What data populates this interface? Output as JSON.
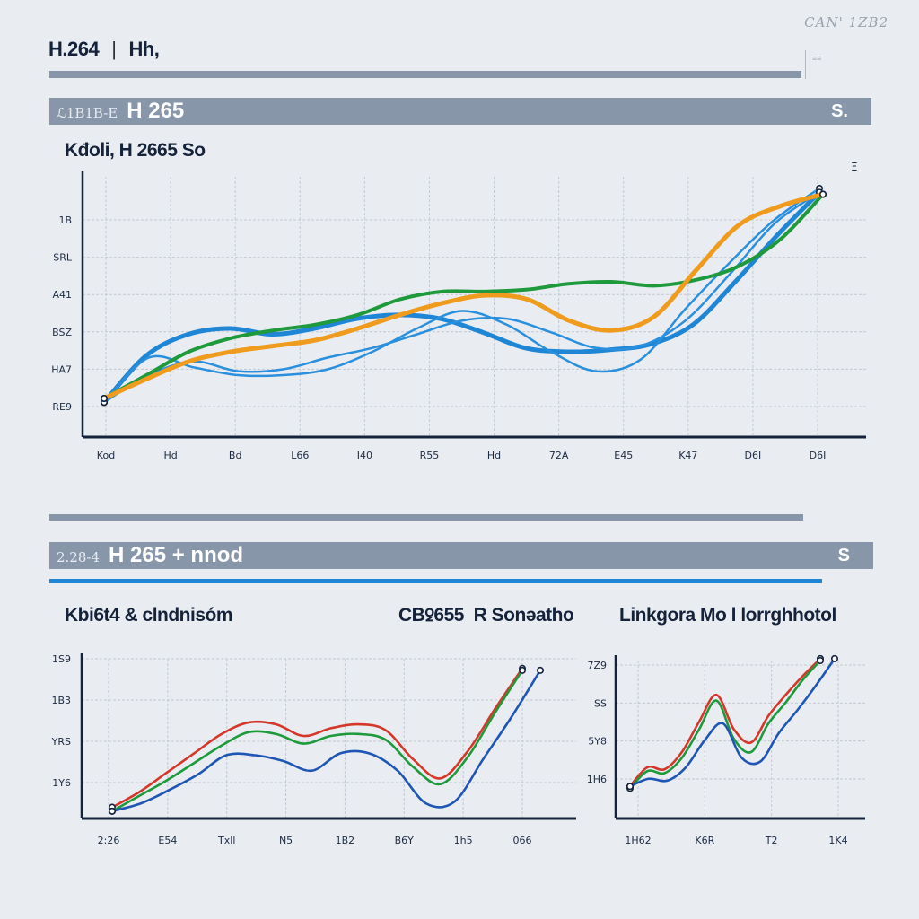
{
  "header": {
    "title_left": "H.264",
    "separator": "|",
    "title_right": "Hh,",
    "corner_text": "CAN' 1ZB2",
    "mini_box_text": "≡≡"
  },
  "section1": {
    "prefix": "ℒ1B1B-E",
    "title": "H 265",
    "suffix": "S."
  },
  "section2": {
    "prefix": "2.28-4",
    "title": "H 265 + nnod",
    "suffix": "S"
  },
  "chart_data": [
    {
      "id": "main",
      "type": "line",
      "title": "Kđoli, H 2665 So",
      "xlabel": "",
      "ylabel": "",
      "x_tick_labels": [
        "Kod",
        "Hd",
        "Bd",
        "L66",
        "I40",
        "R55",
        "Hd",
        "72A",
        "E45",
        "K47",
        "D6I",
        "D6I"
      ],
      "y_tick_labels": [
        "RE9",
        "HA7",
        "BSZ",
        "A41",
        "SRL",
        "1B"
      ],
      "ylim": [
        0,
        6
      ],
      "grid": true,
      "legend": "none",
      "end_marker_label": "Ξ",
      "series": [
        {
          "name": "blue-a",
          "color": "#1f86d6",
          "width": 5,
          "values": [
            0.2,
            1.4,
            1.95,
            2.1,
            1.95,
            2.1,
            2.35,
            2.45,
            2.35,
            2.0,
            1.6,
            1.5,
            1.55,
            1.7,
            2.2,
            3.3,
            4.5,
            5.6
          ]
        },
        {
          "name": "blue-b",
          "color": "#2a8fdc",
          "width": 2.5,
          "values": [
            0.2,
            1.35,
            1.1,
            0.9,
            0.9,
            1.05,
            1.5,
            2.1,
            2.55,
            2.2,
            1.5,
            1.0,
            1.3,
            2.6,
            3.8,
            4.9,
            5.7
          ]
        },
        {
          "name": "blue-c",
          "color": "#2a8fdc",
          "width": 2.5,
          "values": [
            0.2,
            0.9,
            1.25,
            1.0,
            1.05,
            1.35,
            1.6,
            1.95,
            2.3,
            2.35,
            2.0,
            1.6,
            1.65,
            2.3,
            3.5,
            4.8,
            5.6
          ]
        },
        {
          "name": "green",
          "color": "#1e9a3c",
          "width": 4,
          "values": [
            0.3,
            0.9,
            1.5,
            1.85,
            2.05,
            2.2,
            2.45,
            2.85,
            3.05,
            3.05,
            3.1,
            3.25,
            3.3,
            3.2,
            3.35,
            3.7,
            4.4,
            5.55
          ]
        },
        {
          "name": "orange",
          "color": "#ef9b1d",
          "width": 5,
          "values": [
            0.3,
            0.8,
            1.25,
            1.5,
            1.65,
            1.8,
            2.1,
            2.45,
            2.75,
            2.95,
            2.85,
            2.3,
            2.05,
            2.4,
            3.6,
            4.75,
            5.25,
            5.55
          ]
        }
      ]
    },
    {
      "id": "bottom-left",
      "type": "line",
      "title": "Kbi6t4 & clndnisóm",
      "x_tick_labels": [
        "2:26",
        "E54",
        "Txll",
        "N5",
        "1B2",
        "B6Y",
        "1h5",
        "066"
      ],
      "y_tick_labels": [
        "1Y6",
        "YRS",
        "1B3",
        "1S9"
      ],
      "ylim": [
        0,
        4
      ],
      "grid": true,
      "legend": "none",
      "series": [
        {
          "name": "red",
          "color": "#d5372b",
          "values": [
            0.15,
            0.55,
            1.05,
            1.55,
            2.05,
            2.35,
            2.3,
            2.0,
            2.2,
            2.3,
            2.15,
            1.4,
            0.9,
            1.6,
            2.7,
            3.75
          ]
        },
        {
          "name": "green",
          "color": "#1e9a3c",
          "values": [
            0.05,
            0.45,
            0.85,
            1.3,
            1.75,
            2.1,
            2.05,
            1.8,
            2.0,
            2.05,
            1.9,
            1.2,
            0.75,
            1.45,
            2.6,
            3.7
          ]
        },
        {
          "name": "blue",
          "color": "#1f56b4",
          "values": [
            0.05,
            0.25,
            0.6,
            1.0,
            1.5,
            1.5,
            1.35,
            1.1,
            1.55,
            1.55,
            1.1,
            0.25,
            0.3,
            1.4,
            2.5,
            3.7
          ]
        }
      ]
    },
    {
      "id": "bottom-right",
      "type": "line",
      "title": "Linkgora Mo l lorrghhotol",
      "x_tick_labels": [
        "1H62",
        "K6R",
        "T2",
        "1K4"
      ],
      "y_tick_labels": [
        "1H6",
        "5Y8",
        "SS",
        "7Z9"
      ],
      "ylim": [
        0,
        4
      ],
      "grid": true,
      "legend": "none",
      "series": [
        {
          "name": "red",
          "color": "#d5372b",
          "values": [
            0.7,
            1.2,
            1.15,
            1.6,
            2.4,
            3.1,
            2.2,
            1.85,
            2.55,
            3.1,
            3.6,
            4.05
          ]
        },
        {
          "name": "green",
          "color": "#1e9a3c",
          "values": [
            0.65,
            1.1,
            1.05,
            1.45,
            2.2,
            2.95,
            1.95,
            1.6,
            2.35,
            2.9,
            3.5,
            4.0
          ]
        },
        {
          "name": "blue",
          "color": "#1f56b4",
          "values": [
            0.7,
            0.9,
            0.85,
            1.2,
            1.9,
            2.35,
            1.45,
            1.35,
            2.1,
            2.7,
            3.35,
            4.05
          ]
        }
      ]
    }
  ]
}
